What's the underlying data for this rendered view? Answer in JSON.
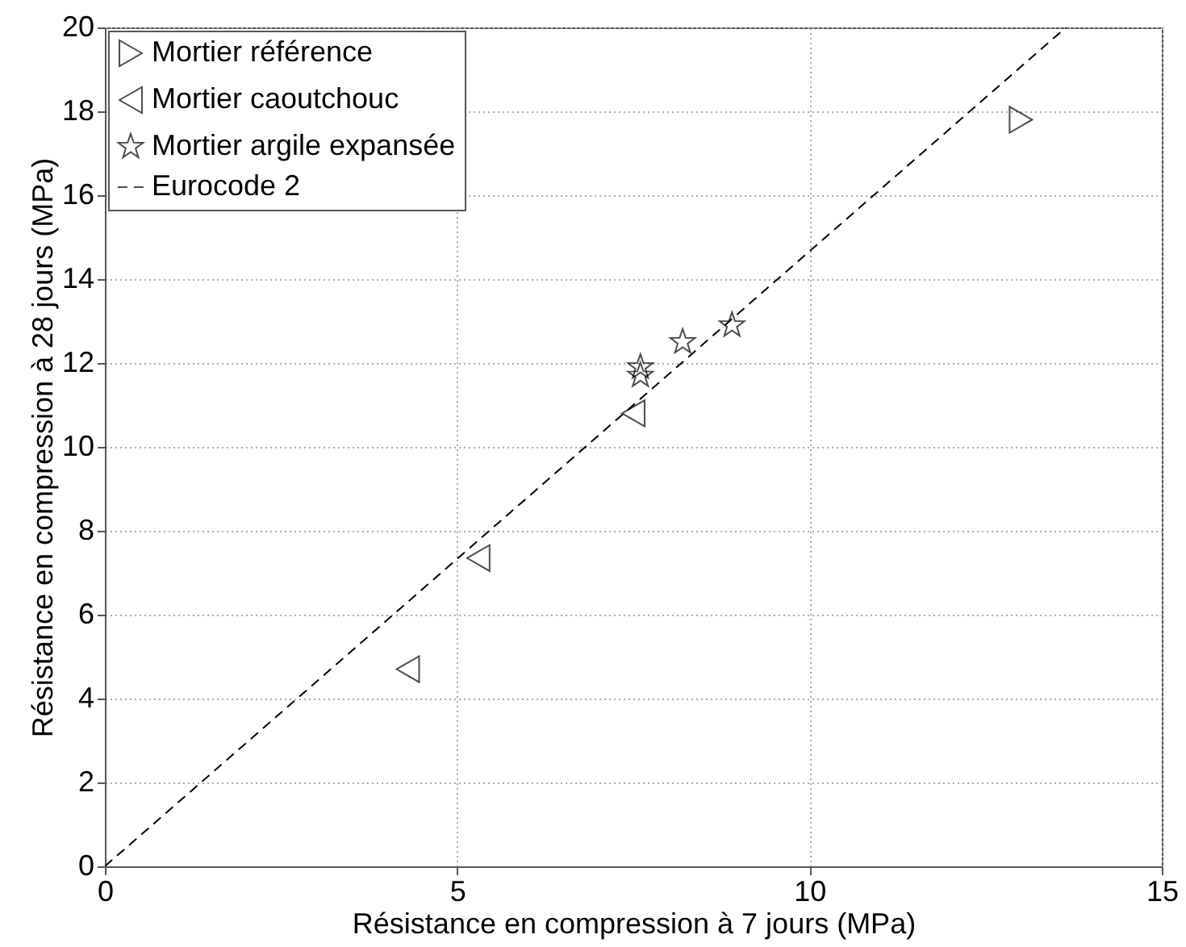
{
  "chart_data": {
    "type": "scatter",
    "xlabel": "Résistance en compression à 7 jours (MPa)",
    "ylabel": "Résistance en compression à 28 jours (MPa)",
    "xlim": [
      0,
      15
    ],
    "xticks": [
      0,
      5,
      10,
      15
    ],
    "ylim": [
      0,
      20
    ],
    "yticks": [
      0,
      2,
      4,
      6,
      8,
      10,
      12,
      14,
      16,
      18,
      20
    ],
    "grid": true,
    "legend": "top left",
    "series": [
      {
        "name": "Mortier référence",
        "type": "scatter",
        "marker": "triangle-right",
        "color": "#000000",
        "x": [
          13.0
        ],
        "values": [
          17.8
        ]
      },
      {
        "name": "Mortier caoutchouc",
        "type": "scatter",
        "marker": "triangle-left",
        "color": "#000000",
        "x": [
          4.3,
          5.3,
          7.5
        ],
        "values": [
          4.7,
          7.35,
          10.8
        ]
      },
      {
        "name": "Mortier argile expansée",
        "type": "scatter",
        "marker": "star",
        "color": "#000000",
        "x": [
          7.6,
          7.6,
          8.2,
          8.9
        ],
        "values": [
          11.9,
          11.7,
          12.5,
          12.9
        ]
      },
      {
        "name": "Eurocode 2",
        "type": "line",
        "line_style": "dashed",
        "color": "#000000",
        "x": [
          0,
          13.64
        ],
        "values": [
          0,
          20
        ]
      }
    ]
  }
}
